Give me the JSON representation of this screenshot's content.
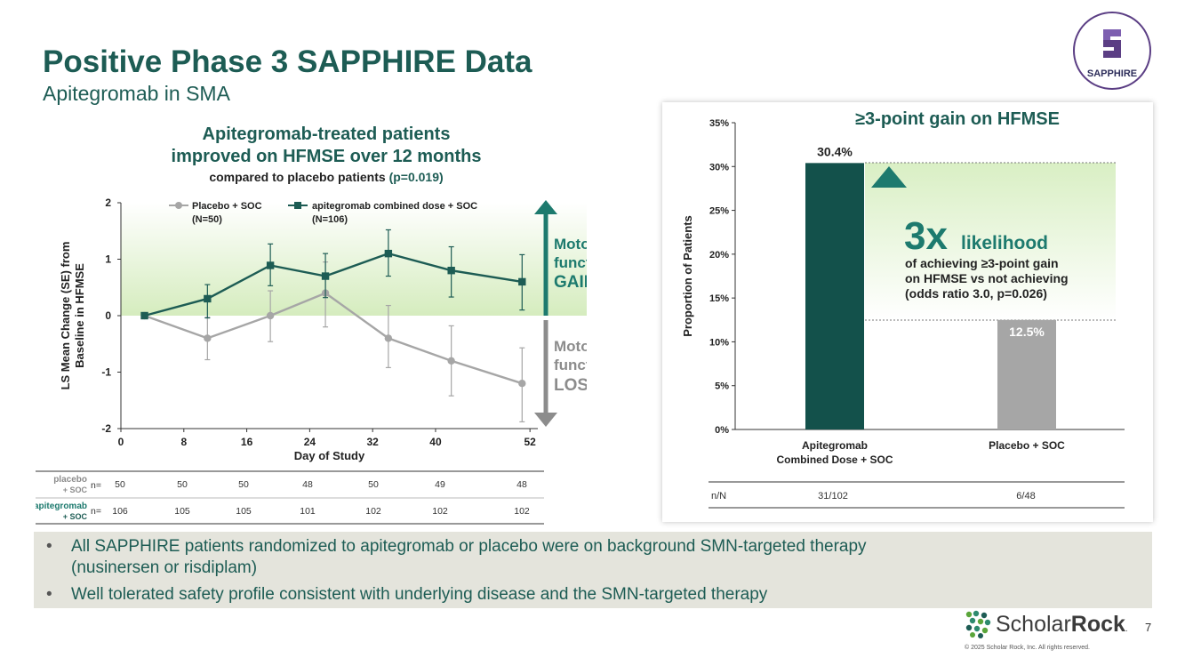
{
  "header": {
    "title": "Positive Phase 3 SAPPHIRE Data",
    "subtitle": "Apitegromab in SMA",
    "badge_text": "SAPPHIRE"
  },
  "left_chart_title": {
    "line1": "Apitegromab-treated patients",
    "line2": "improved on HFMSE over 12 months",
    "line3": "compared to placebo patients",
    "pvalue": "(p=0.019)"
  },
  "gain_loss": {
    "gain": [
      "Motor",
      "function",
      "GAIN"
    ],
    "loss": [
      "Motor",
      "function",
      "LOSS"
    ]
  },
  "n_table": {
    "label": "n=",
    "rows": [
      {
        "name_l1": "placebo",
        "name_l2": "+ SOC",
        "values": [
          "50",
          "50",
          "50",
          "48",
          "50",
          "49",
          "48"
        ]
      },
      {
        "name_l1": "apitegromab",
        "name_l2": "+ SOC",
        "values": [
          "106",
          "105",
          "105",
          "101",
          "102",
          "102",
          "102"
        ]
      }
    ]
  },
  "chart_data": [
    {
      "type": "line",
      "title": "",
      "xlabel": "Day of Study",
      "ylabel": "LS Mean Change (SE) from Baseline in HFMSE",
      "x_ticks": [
        0,
        8,
        16,
        24,
        32,
        40,
        52
      ],
      "y_ticks": [
        -2,
        -1,
        0,
        1,
        2
      ],
      "xlim": [
        0,
        53
      ],
      "ylim": [
        -2,
        2
      ],
      "series": [
        {
          "name": "Placebo + SOC",
          "n_label": "(N=50)",
          "color": "#a6a6a6",
          "marker": "circle",
          "x": [
            3,
            11,
            19,
            26,
            34,
            42,
            51
          ],
          "y": [
            0,
            -0.4,
            0,
            0.4,
            -0.4,
            -0.8,
            -1.2
          ],
          "err_low": [
            0,
            -0.78,
            -0.46,
            -0.2,
            -0.92,
            -1.42,
            -1.88
          ],
          "err_high": [
            0,
            -0.03,
            0.44,
            0.95,
            0.18,
            -0.18,
            -0.57
          ]
        },
        {
          "name": "apitegromab combined dose + SOC",
          "n_label": "(N=106)",
          "color": "#1d5c54",
          "marker": "square",
          "x": [
            3,
            11,
            19,
            26,
            34,
            42,
            51
          ],
          "y": [
            0,
            0.3,
            0.89,
            0.7,
            1.1,
            0.8,
            0.6
          ],
          "err_low": [
            0,
            -0.04,
            0.53,
            0.32,
            0.7,
            0.33,
            0.1
          ],
          "err_high": [
            0,
            0.55,
            1.27,
            1.1,
            1.52,
            1.22,
            1.08
          ]
        }
      ]
    },
    {
      "type": "bar",
      "title": "≥3-point gain on HFMSE",
      "xlabel": "",
      "ylabel": "Proportion of Patients",
      "ylim": [
        0,
        35
      ],
      "y_ticks": [
        "0%",
        "5%",
        "10%",
        "15%",
        "20%",
        "25%",
        "30%",
        "35%"
      ],
      "y_tick_values": [
        0,
        5,
        10,
        15,
        20,
        25,
        30,
        35
      ],
      "categories": [
        [
          "Apitegromab",
          "Combined Dose + SOC"
        ],
        [
          "Placebo + SOC"
        ]
      ],
      "values": [
        30.4,
        12.5
      ],
      "labels": [
        "30.4%",
        "12.5%"
      ],
      "colors": [
        "#13514b",
        "#a6a6a6"
      ],
      "nN_label": "n/N",
      "nN": [
        "31/102",
        "6/48"
      ],
      "annotation": {
        "big": "3x",
        "word": "likelihood",
        "lines": [
          "of achieving ≥3-point gain",
          "on HFMSE vs not achieving",
          "(odds ratio 3.0, p=0.026)"
        ]
      }
    }
  ],
  "bullets": [
    {
      "line1": "All SAPPHIRE patients randomized to apitegromab or placebo were on background SMN-targeted therapy",
      "line2": "(nusinersen or risdiplam)"
    },
    {
      "line1": "Well tolerated safety profile consistent with underlying disease and the SMN-targeted therapy",
      "line2": ""
    }
  ],
  "footer": {
    "brand_light": "Scholar",
    "brand_bold": "Rock",
    "brand_mark": ".",
    "page_number": "7",
    "copyright": "© 2025 Scholar Rock, Inc. All rights reserved."
  }
}
